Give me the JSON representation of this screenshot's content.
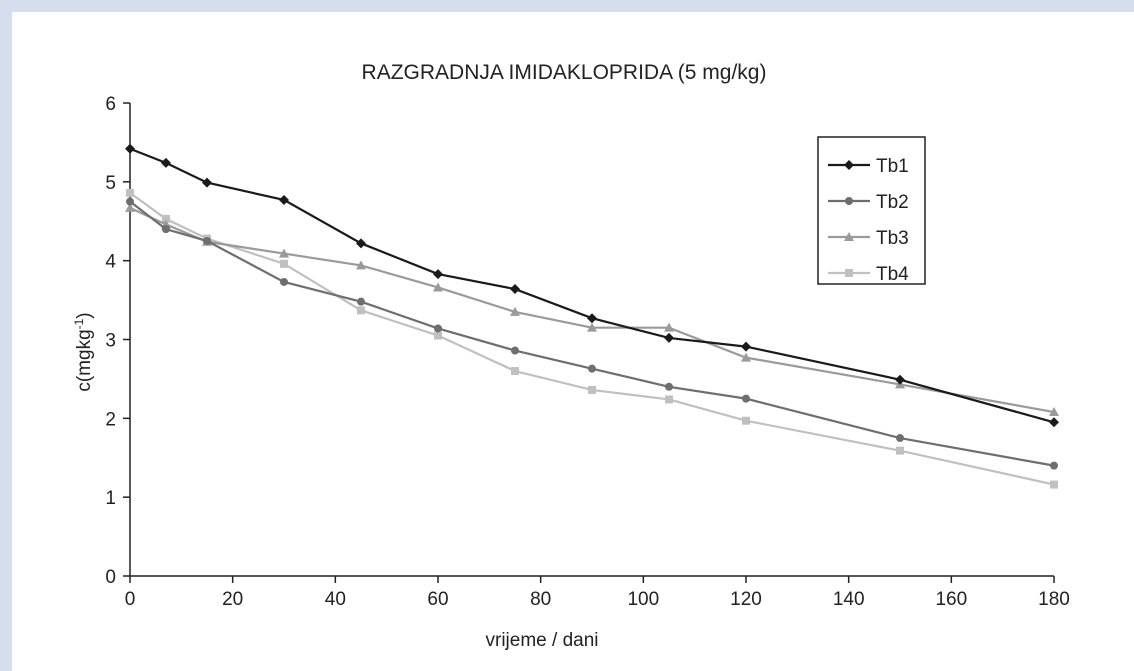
{
  "chart_data": {
    "type": "line",
    "title": "RAZGRADNJA IMIDAKLOPRIDA  (5 mg/kg)",
    "xlabel": "vrijeme / dani",
    "ylabel_main": "c(mgkg",
    "ylabel_sup": "-1",
    "ylabel_close": ")",
    "xlim": [
      0,
      180
    ],
    "ylim": [
      0,
      6
    ],
    "xticks": [
      0,
      20,
      40,
      60,
      80,
      100,
      120,
      140,
      160,
      180
    ],
    "yticks": [
      0,
      1,
      2,
      3,
      4,
      5,
      6
    ],
    "grid": false,
    "legend_position": "top-right",
    "x": [
      0,
      7,
      15,
      30,
      45,
      60,
      75,
      90,
      105,
      120,
      150,
      180
    ],
    "series": [
      {
        "name": "Tb1",
        "color": "#1a1a1a",
        "marker": "diamond",
        "values": [
          5.42,
          5.24,
          4.99,
          4.77,
          4.22,
          3.83,
          3.64,
          3.27,
          3.02,
          2.91,
          2.49,
          1.95
        ]
      },
      {
        "name": "Tb2",
        "color": "#6e6e6e",
        "marker": "circle",
        "values": [
          4.75,
          4.4,
          4.25,
          3.73,
          3.48,
          3.14,
          2.86,
          2.63,
          2.4,
          2.25,
          1.75,
          1.4
        ]
      },
      {
        "name": "Tb3",
        "color": "#9a9a9a",
        "marker": "triangle",
        "values": [
          4.67,
          4.46,
          4.24,
          4.09,
          3.94,
          3.66,
          3.35,
          3.15,
          3.15,
          2.77,
          2.43,
          2.08
        ]
      },
      {
        "name": "Tb4",
        "color": "#c0c0c0",
        "marker": "square",
        "values": [
          4.86,
          4.53,
          4.28,
          3.96,
          3.37,
          3.05,
          2.6,
          2.36,
          2.24,
          1.97,
          1.59,
          1.16
        ]
      }
    ]
  }
}
